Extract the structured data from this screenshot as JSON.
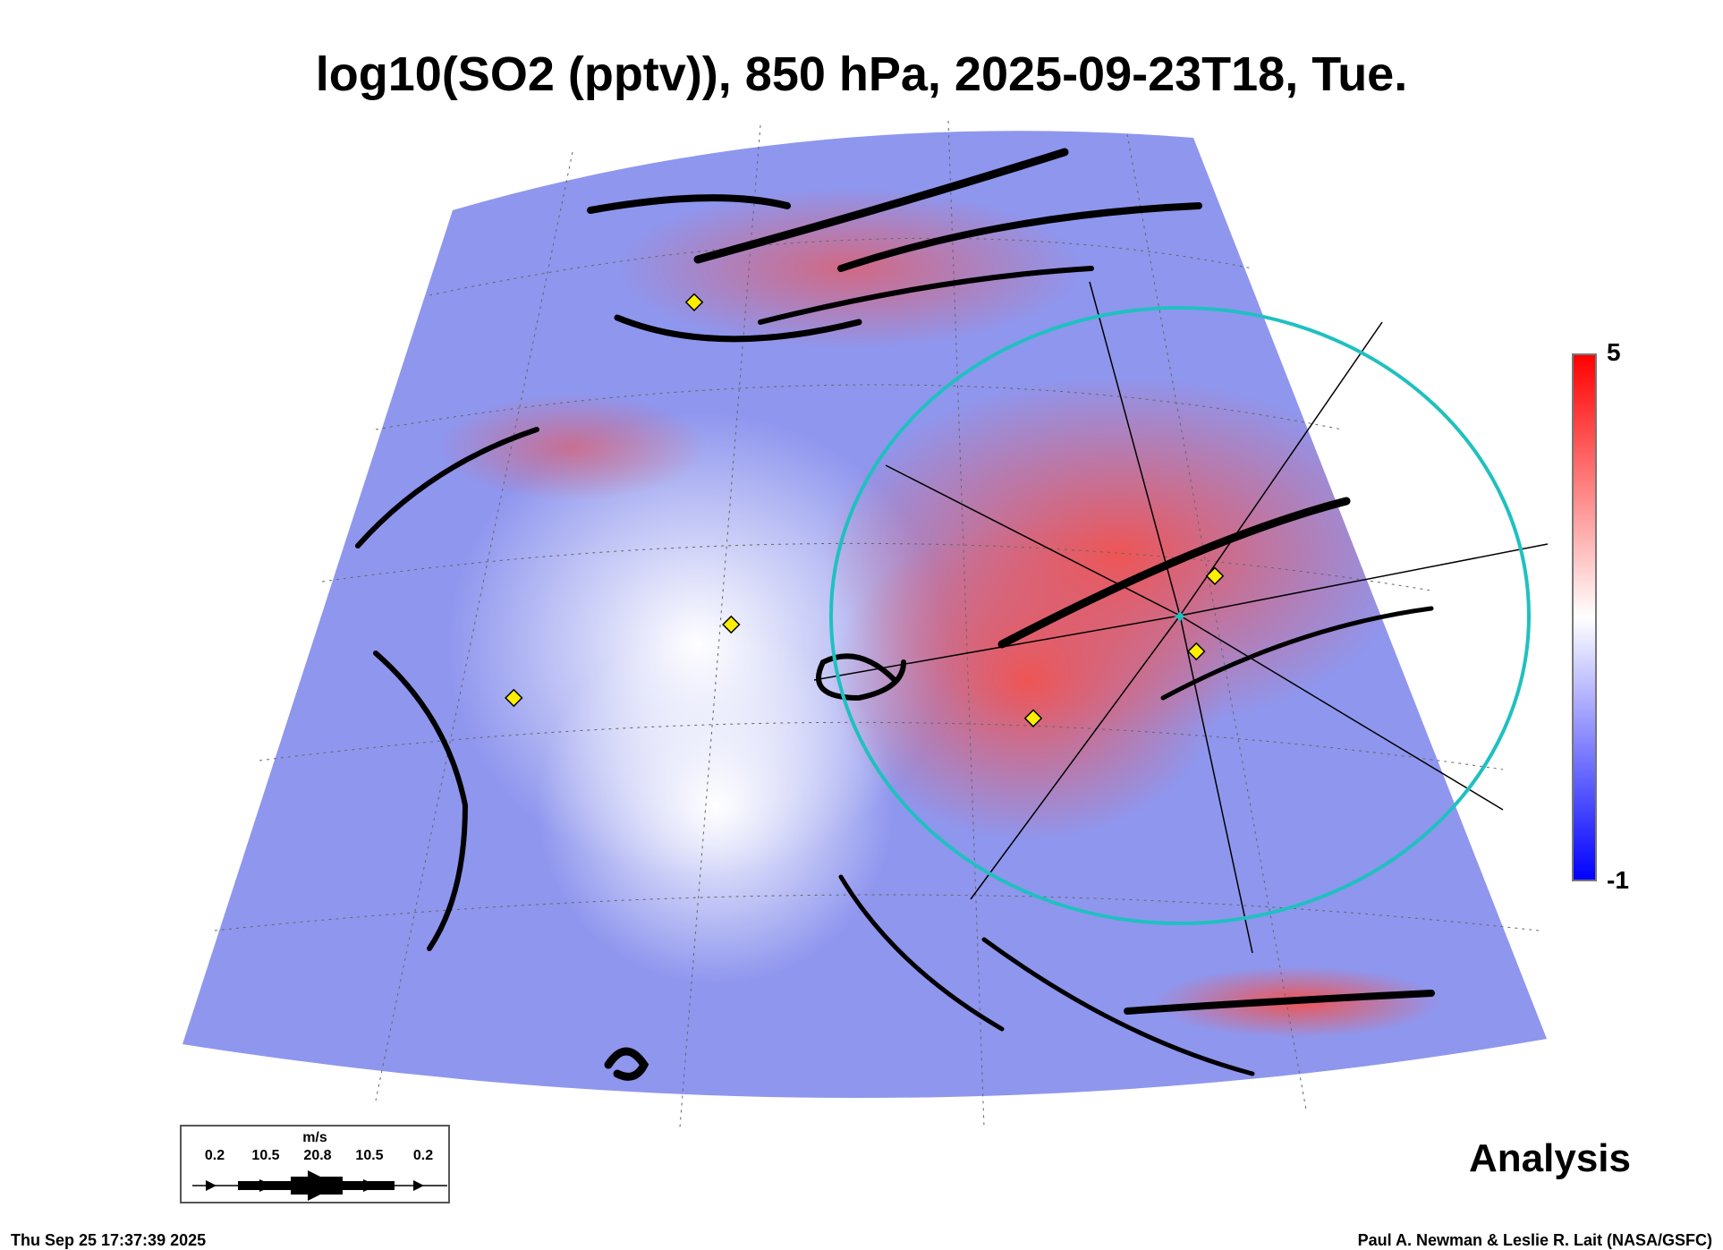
{
  "title": "log10(SO2 (pptv)), 850 hPa, 2025-09-23T18, Tue.",
  "colorbar": {
    "max_label": "5",
    "min_label": "-1",
    "max": 5,
    "min": -1,
    "colors": [
      "#0000ff",
      "#ffffff",
      "#ff0000"
    ]
  },
  "wind_legend": {
    "unit": "m/s",
    "values": [
      "0.2",
      "10.5",
      "20.8",
      "10.5",
      "0.2"
    ]
  },
  "mode_label": "Analysis",
  "timestamp": "Thu Sep 25 17:37:39 2025",
  "credit": "Paul A. Newman & Leslie R. Lait (NASA/GSFC)",
  "circle_color": "#20c0c0",
  "marker_color": "#ffee00"
}
